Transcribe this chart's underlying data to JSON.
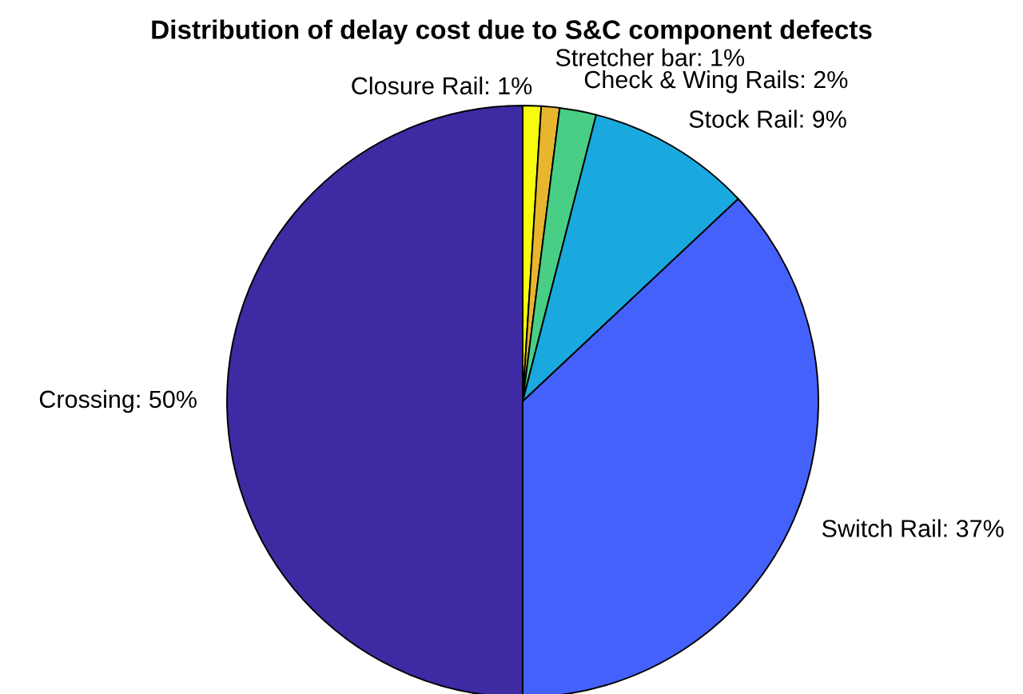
{
  "chart_data": {
    "type": "pie",
    "title": "Distribution of delay cost due to S&C component defects",
    "categories": [
      "Closure Rail",
      "Stretcher bar",
      "Check & Wing Rails",
      "Stock Rail",
      "Switch Rail",
      "Crossing"
    ],
    "values": [
      1,
      1,
      2,
      9,
      37,
      50
    ],
    "value_labels": [
      "1%",
      "1%",
      "2%",
      "9%",
      "37%",
      "50%"
    ],
    "colors": [
      "#f9fb0e",
      "#e8b62e",
      "#48cf85",
      "#1aa9df",
      "#4462fb",
      "#3e2aa3"
    ]
  }
}
